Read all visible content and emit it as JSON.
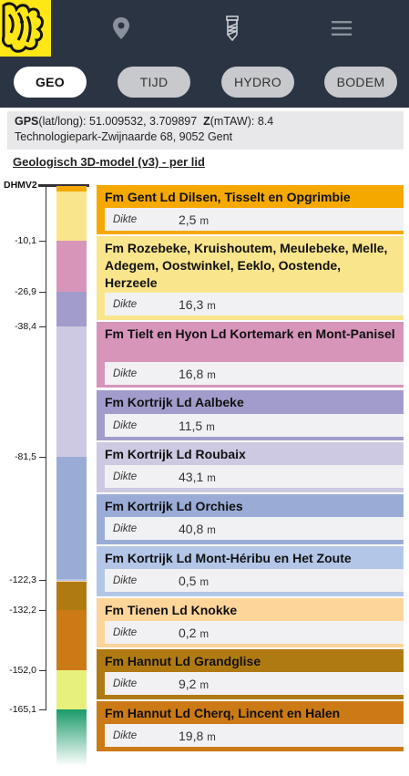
{
  "nav": {
    "icons": [
      "logo-lion",
      "location-pin-icon",
      "drill-icon",
      "hamburger-menu-icon"
    ],
    "colors": {
      "bar": "#2b3443",
      "logo": "#ffe615"
    }
  },
  "tabs": [
    {
      "label": "GEO",
      "active": true
    },
    {
      "label": "TIJD",
      "active": false
    },
    {
      "label": "HYDRO",
      "active": false
    },
    {
      "label": "BODEM",
      "active": false
    }
  ],
  "info": {
    "gps_label": "GPS",
    "gps_suffix": "(lat/long): ",
    "gps_value": "51.009532, 3.709897",
    "z_label": "Z",
    "z_suffix": "(mTAW): ",
    "z_value": "8.4",
    "address": "Technologiepark-Zwijnaarde 68, 9052 Gent"
  },
  "model_title": "Geologisch 3D-model (v3) - per lid",
  "depth": {
    "top_label": "DHMV2",
    "labels": [
      "-10,1",
      "-26,9",
      "-38,4",
      "-81,5",
      "-122,3",
      "-132,2",
      "-152,0",
      "-165,1"
    ]
  },
  "dikte_label": "Dikte",
  "unit": "m",
  "layers": [
    {
      "name": "Fm Gent Ld Dilsen, Tisselt en Opgrimbie",
      "dikte": "2,5",
      "color": "#f5a800"
    },
    {
      "name": "Fm Rozebeke, Kruishoutem, Meulebeke, Melle, Adegem, Oostwinkel, Eeklo, Oostende, Herzeele",
      "dikte": "16,3",
      "color": "#f9e58c"
    },
    {
      "name": "Fm Tielt en Hyon Ld Kortemark en Mont-Panisel",
      "dikte": "16,8",
      "color": "#d795ba"
    },
    {
      "name": "Fm Kortrijk Ld Aalbeke",
      "dikte": "11,5",
      "color": "#a19ccb"
    },
    {
      "name": "Fm Kortrijk Ld Roubaix",
      "dikte": "43,1",
      "color": "#cdc9e2"
    },
    {
      "name": "Fm Kortrijk Ld Orchies",
      "dikte": "40,8",
      "color": "#9aacd6"
    },
    {
      "name": "Fm Kortrijk Ld Mont-Héribu en Het Zoute",
      "dikte": "0,5",
      "color": "#b3c6e8"
    },
    {
      "name": "Fm Tienen Ld Knokke",
      "dikte": "0,2",
      "color": "#fdd49a"
    },
    {
      "name": "Fm Hannut Ld Grandglise",
      "dikte": "9,2",
      "color": "#b07a12"
    },
    {
      "name": "Fm Hannut Ld Cherq, Lincent en Halen",
      "dikte": "19,8",
      "color": "#cc7a16"
    }
  ],
  "column_colors": [
    "#f5a800",
    "#f9e58c",
    "#d795ba",
    "#a19ccb",
    "#cdc9e2",
    "#9aacd6",
    "#b3c6e8",
    "#fdd49a",
    "#b07a12",
    "#cc7a16",
    "#e7f07c",
    "#1a9a6a"
  ]
}
